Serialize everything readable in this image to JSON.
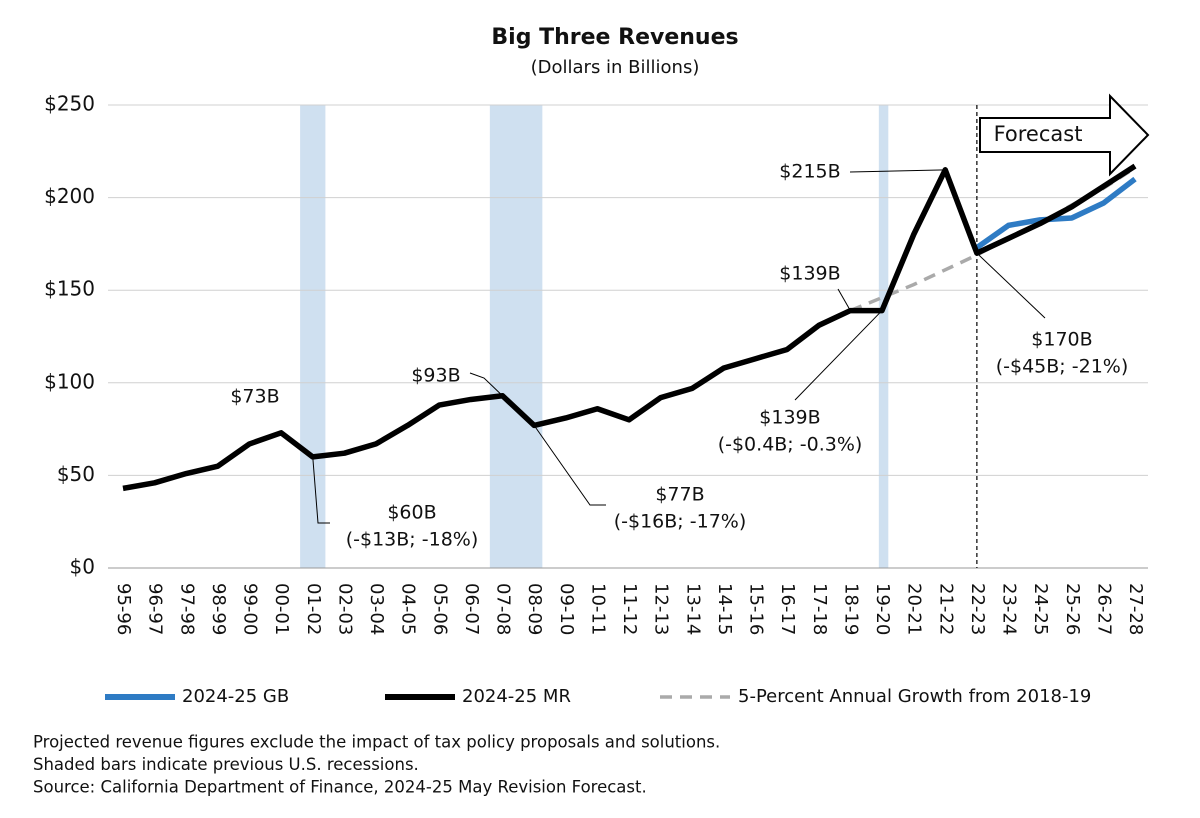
{
  "chart_data": {
    "type": "line",
    "title": "Big Three Revenues",
    "subtitle": "(Dollars in Billions)",
    "categories": [
      "95-96",
      "96-97",
      "97-98",
      "98-99",
      "99-00",
      "00-01",
      "01-02",
      "02-03",
      "03-04",
      "04-05",
      "05-06",
      "06-07",
      "07-08",
      "08-09",
      "09-10",
      "10-11",
      "11-12",
      "12-13",
      "13-14",
      "14-15",
      "15-16",
      "16-17",
      "17-18",
      "18-19",
      "19-20",
      "20-21",
      "21-22",
      "22-23",
      "23-24",
      "24-25",
      "25-26",
      "26-27",
      "27-28"
    ],
    "series": [
      {
        "name": "2024-25 GB",
        "color": "#2e7bc4",
        "dash": false,
        "values": [
          null,
          null,
          null,
          null,
          null,
          null,
          null,
          null,
          null,
          null,
          null,
          null,
          null,
          null,
          null,
          null,
          null,
          null,
          null,
          null,
          null,
          null,
          null,
          null,
          null,
          null,
          null,
          173,
          185,
          188,
          189,
          197,
          210
        ]
      },
      {
        "name": "2024-25 MR",
        "color": "#000000",
        "dash": false,
        "values": [
          43,
          46,
          51,
          55,
          67,
          73,
          60,
          62,
          67,
          77,
          88,
          91,
          93,
          77,
          81,
          86,
          80,
          92,
          97,
          108,
          113,
          118,
          131,
          139,
          139,
          180,
          215,
          170,
          178,
          186,
          195,
          206,
          217
        ]
      },
      {
        "name": "5-Percent Annual Growth from 2018-19",
        "color": "#aaaaaa",
        "dash": true,
        "values": [
          null,
          null,
          null,
          null,
          null,
          null,
          null,
          null,
          null,
          null,
          null,
          null,
          null,
          null,
          null,
          null,
          null,
          null,
          null,
          null,
          null,
          null,
          null,
          139,
          146,
          153,
          161,
          169,
          178,
          186,
          196,
          205,
          216
        ]
      }
    ],
    "ylim": [
      0,
      250
    ],
    "yticks": [
      {
        "value": 0,
        "label": "$0"
      },
      {
        "value": 50,
        "label": "$50"
      },
      {
        "value": 100,
        "label": "$100"
      },
      {
        "value": 150,
        "label": "$150"
      },
      {
        "value": 200,
        "label": "$200"
      },
      {
        "value": 250,
        "label": "$250"
      }
    ],
    "grid": true,
    "recessions": [
      [
        5.6,
        6.4
      ],
      [
        11.6,
        13.26
      ],
      [
        23.9,
        24.2
      ]
    ],
    "forecast": {
      "label": "Forecast",
      "at": 27
    },
    "annotations": [
      {
        "lines": [
          "$73B"
        ]
      },
      {
        "lines": [
          "$60B",
          "(-$13B; -18%)"
        ]
      },
      {
        "lines": [
          "$93B"
        ]
      },
      {
        "lines": [
          "$77B",
          "(-$16B; -17%)"
        ]
      },
      {
        "lines": [
          "$139B"
        ]
      },
      {
        "lines": [
          "$139B",
          "(-$0.4B; -0.3%)"
        ]
      },
      {
        "lines": [
          "$215B"
        ]
      },
      {
        "lines": [
          "$170B",
          "(-$45B; -21%)"
        ]
      }
    ],
    "footnotes": [
      "Projected revenue figures exclude the impact of tax policy proposals and solutions.",
      "Shaded bars indicate previous U.S. recessions.",
      "Source: California Department of Finance, 2024-25 May Revision Forecast."
    ]
  }
}
